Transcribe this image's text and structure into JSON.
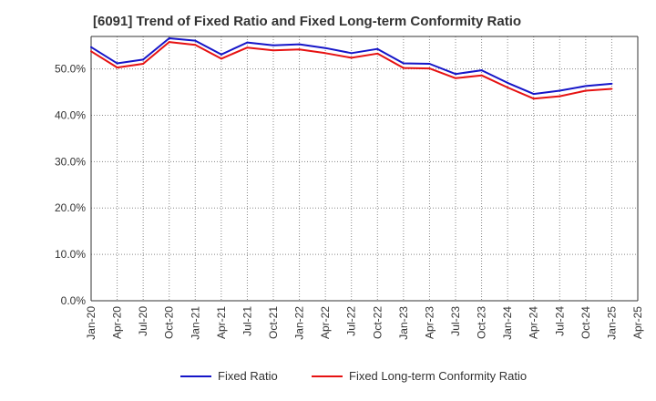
{
  "chart_data": {
    "type": "line",
    "title": "[6091]  Trend of Fixed Ratio and Fixed Long-term Conformity Ratio",
    "xlabel": "",
    "ylabel": "",
    "ylim": [
      0,
      57
    ],
    "y_ticks": [
      "0.0%",
      "10.0%",
      "20.0%",
      "30.0%",
      "40.0%",
      "50.0%"
    ],
    "y_tick_values": [
      0,
      10,
      20,
      30,
      40,
      50
    ],
    "x_tick_labels": [
      "Jan-20",
      "Apr-20",
      "Jul-20",
      "Oct-20",
      "Jan-21",
      "Apr-21",
      "Jul-21",
      "Oct-21",
      "Jan-22",
      "Apr-22",
      "Jul-22",
      "Oct-22",
      "Jan-23",
      "Apr-23",
      "Jul-23",
      "Oct-23",
      "Jan-24",
      "Apr-24",
      "Jul-24",
      "Oct-24",
      "Jan-25",
      "Apr-25"
    ],
    "grid": true,
    "legend_position": "bottom",
    "series": [
      {
        "name": "Fixed Ratio",
        "color": "#1515c8",
        "values": [
          54.7,
          51.2,
          52.0,
          56.6,
          56.1,
          53.1,
          55.7,
          55.1,
          55.3,
          54.5,
          53.4,
          54.3,
          51.2,
          51.1,
          48.9,
          49.7,
          47.0,
          44.6,
          45.3,
          46.3,
          46.8
        ]
      },
      {
        "name": "Fixed Long-term Conformity Ratio",
        "color": "#e61212",
        "values": [
          53.8,
          50.3,
          51.1,
          55.8,
          55.2,
          52.2,
          54.6,
          54.0,
          54.2,
          53.4,
          52.4,
          53.3,
          50.2,
          50.1,
          48.0,
          48.6,
          46.0,
          43.6,
          44.1,
          45.3,
          45.7
        ]
      }
    ]
  }
}
